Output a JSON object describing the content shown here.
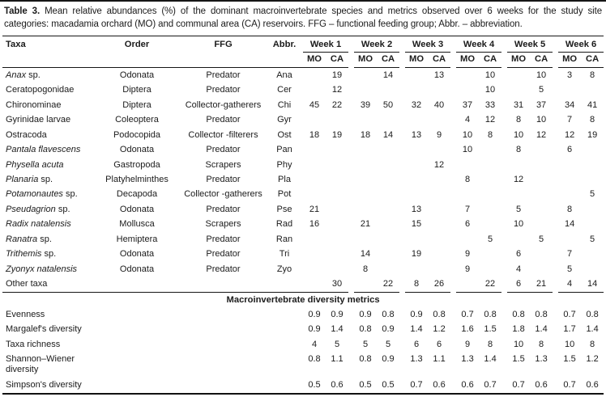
{
  "caption": {
    "label": "Table 3.",
    "text": "Mean relative abundances (%) of the dominant macroinvertebrate species and metrics observed over 6 weeks for the study site categories: macadamia orchard (MO) and communal area (CA) reservoirs. FFG – functional feeding group; Abbr. – abbreviation."
  },
  "table": {
    "col_headers": {
      "taxa": "Taxa",
      "order": "Order",
      "ffg": "FFG",
      "abbr": "Abbr."
    },
    "weeks": [
      "Week 1",
      "Week 2",
      "Week 3",
      "Week 4",
      "Week 5",
      "Week 6"
    ],
    "subcols": [
      "MO",
      "CA"
    ],
    "species": [
      {
        "taxa_italic": "Anax",
        "taxa_rest": " sp.",
        "order": "Odonata",
        "ffg": "Predator",
        "abbr": "Ana",
        "values": [
          "",
          "19",
          "",
          "14",
          "",
          "13",
          "",
          "10",
          "",
          "10",
          "3",
          "8"
        ]
      },
      {
        "taxa_italic": "",
        "taxa_rest": "Ceratopogonidae",
        "order": "Diptera",
        "ffg": "Predator",
        "abbr": "Cer",
        "values": [
          "",
          "12",
          "",
          "",
          "",
          "",
          "",
          "10",
          "",
          "5",
          "",
          ""
        ]
      },
      {
        "taxa_italic": "",
        "taxa_rest": "Chironominae",
        "order": "Diptera",
        "ffg": "Collector-gatherers",
        "abbr": "Chi",
        "values": [
          "45",
          "22",
          "39",
          "50",
          "32",
          "40",
          "37",
          "33",
          "31",
          "37",
          "34",
          "41"
        ]
      },
      {
        "taxa_italic": "",
        "taxa_rest": "Gyrinidae larvae",
        "order": "Coleoptera",
        "ffg": "Predator",
        "abbr": "Gyr",
        "values": [
          "",
          "",
          "",
          "",
          "",
          "",
          "4",
          "12",
          "8",
          "10",
          "7",
          "8"
        ]
      },
      {
        "taxa_italic": "",
        "taxa_rest": "Ostracoda",
        "order": "Podocopida",
        "ffg": "Collector -filterers",
        "abbr": "Ost",
        "values": [
          "18",
          "19",
          "18",
          "14",
          "13",
          "9",
          "10",
          "8",
          "10",
          "12",
          "12",
          "19"
        ]
      },
      {
        "taxa_italic": "Pantala flavescens",
        "taxa_rest": "",
        "order": "Odonata",
        "ffg": "Predator",
        "abbr": "Pan",
        "values": [
          "",
          "",
          "",
          "",
          "",
          "",
          "10",
          "",
          "8",
          "",
          "6",
          ""
        ]
      },
      {
        "taxa_italic": "Physella acuta",
        "taxa_rest": "",
        "order": "Gastropoda",
        "ffg": "Scrapers",
        "abbr": "Phy",
        "values": [
          "",
          "",
          "",
          "",
          "",
          "12",
          "",
          "",
          "",
          "",
          "",
          ""
        ]
      },
      {
        "taxa_italic": "Planaria",
        "taxa_rest": " sp.",
        "order": "Platyhelminthes",
        "ffg": "Predator",
        "abbr": "Pla",
        "values": [
          "",
          "",
          "",
          "",
          "",
          "",
          "8",
          "",
          "12",
          "",
          "",
          ""
        ]
      },
      {
        "taxa_italic": "Potamonautes",
        "taxa_rest": " sp.",
        "order": "Decapoda",
        "ffg": "Collector -gatherers",
        "abbr": "Pot",
        "values": [
          "",
          "",
          "",
          "",
          "",
          "",
          "",
          "",
          "",
          "",
          "",
          "5"
        ]
      },
      {
        "taxa_italic": "Pseudagrion",
        "taxa_rest": " sp.",
        "order": "Odonata",
        "ffg": "Predator",
        "abbr": "Pse",
        "values": [
          "21",
          "",
          "",
          "",
          "13",
          "",
          "7",
          "",
          "5",
          "",
          "8",
          ""
        ]
      },
      {
        "taxa_italic": "Radix natalensis",
        "taxa_rest": "",
        "order": "Mollusca",
        "ffg": "Scrapers",
        "abbr": "Rad",
        "values": [
          "16",
          "",
          "21",
          "",
          "15",
          "",
          "6",
          "",
          "10",
          "",
          "14",
          ""
        ]
      },
      {
        "taxa_italic": "Ranatra",
        "taxa_rest": " sp.",
        "order": "Hemiptera",
        "ffg": "Predator",
        "abbr": "Ran",
        "values": [
          "",
          "",
          "",
          "",
          "",
          "",
          "",
          "5",
          "",
          "5",
          "",
          "5"
        ]
      },
      {
        "taxa_italic": "Trithemis",
        "taxa_rest": " sp.",
        "order": "Odonata",
        "ffg": "Predator",
        "abbr": "Tri",
        "values": [
          "",
          "",
          "14",
          "",
          "19",
          "",
          "9",
          "",
          "6",
          "",
          "7",
          ""
        ]
      },
      {
        "taxa_italic": "Zyonyx natalensis",
        "taxa_rest": "",
        "order": "Odonata",
        "ffg": "Predator",
        "abbr": "Zyo",
        "values": [
          "",
          "",
          "8",
          "",
          "",
          "",
          "9",
          "",
          "4",
          "",
          "5",
          ""
        ]
      },
      {
        "taxa_italic": "",
        "taxa_rest": "Other taxa",
        "order": "",
        "ffg": "",
        "abbr": "",
        "values": [
          "",
          "30",
          "",
          "22",
          "8",
          "26",
          "",
          "22",
          "6",
          "21",
          "4",
          "14"
        ]
      }
    ],
    "section_header": "Macroinvertebrate diversity metrics",
    "metrics": [
      {
        "name": "Evenness",
        "values": [
          "0.9",
          "0.9",
          "0.9",
          "0.8",
          "0.9",
          "0.8",
          "0.7",
          "0.8",
          "0.8",
          "0.8",
          "0.7",
          "0.8"
        ]
      },
      {
        "name": "Margalef's diversity",
        "values": [
          "0.9",
          "1.4",
          "0.8",
          "0.9",
          "1.4",
          "1.2",
          "1.6",
          "1.5",
          "1.8",
          "1.4",
          "1.7",
          "1.4"
        ]
      },
      {
        "name": "Taxa richness",
        "values": [
          "4",
          "5",
          "5",
          "5",
          "6",
          "6",
          "9",
          "8",
          "10",
          "8",
          "10",
          "8"
        ]
      },
      {
        "name": "Shannon–Wiener diversity",
        "values": [
          "0.8",
          "1.1",
          "0.8",
          "0.9",
          "1.3",
          "1.1",
          "1.3",
          "1.4",
          "1.5",
          "1.3",
          "1.5",
          "1.2"
        ]
      },
      {
        "name": "Simpson's diversity",
        "values": [
          "0.5",
          "0.6",
          "0.5",
          "0.5",
          "0.7",
          "0.6",
          "0.6",
          "0.7",
          "0.7",
          "0.6",
          "0.7",
          "0.6"
        ]
      }
    ]
  }
}
